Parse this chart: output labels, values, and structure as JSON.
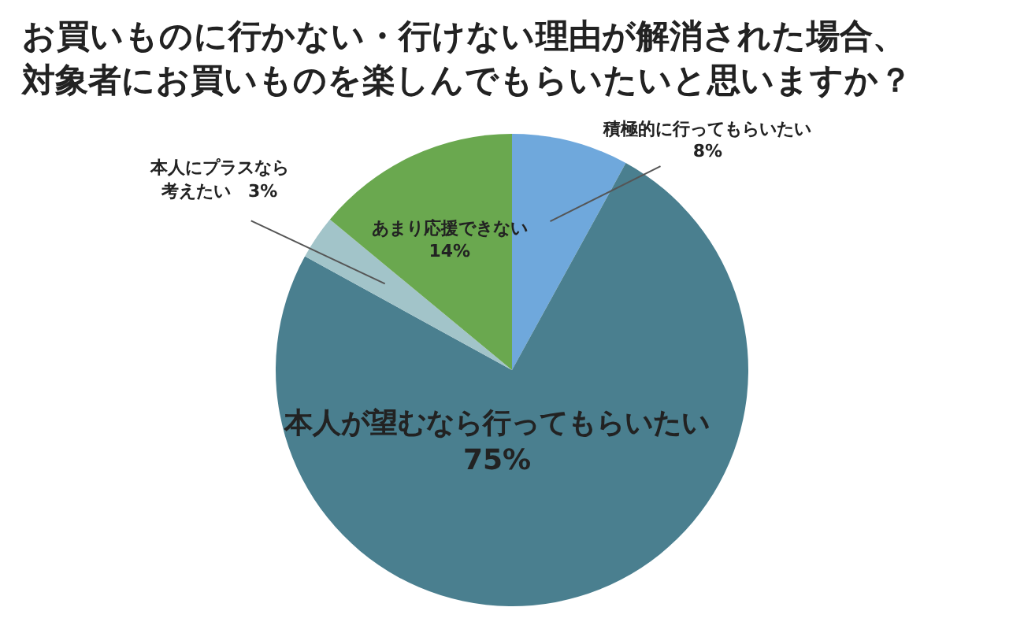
{
  "chart_data": {
    "type": "pie",
    "title": "お買いものに行かない・行けない理由が解消された場合、",
    "subtitle": "対象者にお買いものを楽しんでもらいたいと思いますか？",
    "categories": [
      "積極的に行ってもらいたい",
      "本人が望むなら行ってもらいたい",
      "本人にプラスなら考えたい",
      "あまり応援できない"
    ],
    "values": [
      8,
      75,
      3,
      14
    ],
    "value_labels": [
      "8%",
      "75%",
      "3%",
      "14%"
    ],
    "colors": [
      "#6fa8dc",
      "#4a7f8f",
      "#a2c4c9",
      "#6aa84f"
    ]
  }
}
